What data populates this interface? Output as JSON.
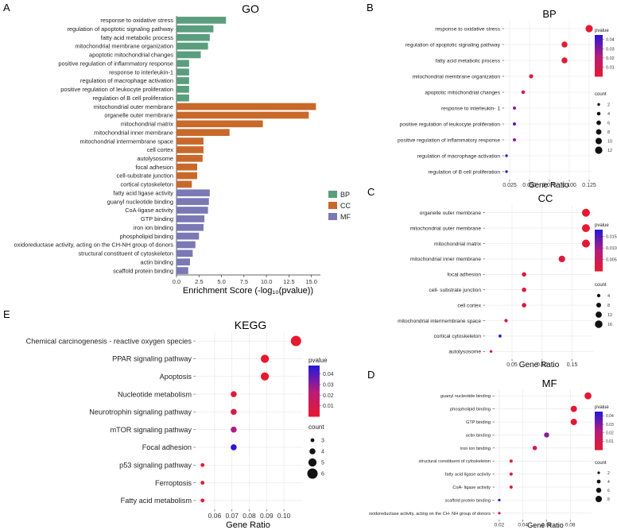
{
  "figure": {
    "panel_letters": [
      "A",
      "B",
      "C",
      "D",
      "E"
    ]
  },
  "colors": {
    "BP": "#5a9e7e",
    "CC": "#c8692a",
    "MF": "#7a79b5",
    "pvalue_low": "#e8192c",
    "pvalue_high": "#2a18d6",
    "grid": "#e6e6e6",
    "panel_bg": "#ffffff"
  },
  "chart_data": [
    {
      "id": "A",
      "type": "bar",
      "orientation": "horizontal",
      "title": "GO",
      "xlabel": "Enrichment Score (-log₁₀(pvalue))",
      "xlim": [
        0,
        16
      ],
      "xticks": [
        "0.0",
        "2.5",
        "5.0",
        "7.5",
        "10.0",
        "12.5",
        "15.0"
      ],
      "xtick_values": [
        0,
        2.5,
        5,
        7.5,
        10,
        12.5,
        15
      ],
      "legend": {
        "position": "right",
        "entries": [
          "BP",
          "CC",
          "MF"
        ]
      },
      "categories": [
        "response to oxidative stress",
        "regulation of apoptotic signaling pathway",
        "fatty acid metabolic process",
        "mitochondrial membrane organization",
        "apoptotic mitochondrial changes",
        "positive regulation of inflammatory response",
        "response to interleukin-1",
        "regulation of macrophage activation",
        "positive regulation of leukocyte proliferation",
        "regulation of B cell proliferation",
        "mitochondrial outer membrane",
        "organelle outer membrane",
        "mitochondrial matrix",
        "mitochondrial inner membrane",
        "mitochondrial intermembrane space",
        "cell cortex",
        "autolysosome",
        "focal adhesion",
        "cell-substrate junction",
        "cortical cytoskeleton",
        "fatty acid ligase activity",
        "guanyl nucleotide binding",
        "CoA-ligase activity",
        "GTP binding",
        "iron ion binding",
        "phospholipid binding",
        "oxidoreductase activity, acting on the CH-NH group of donors",
        "structural constituent of cytoskeleton",
        "actin binding",
        "scaffold protein binding"
      ],
      "groups": [
        "BP",
        "BP",
        "BP",
        "BP",
        "BP",
        "BP",
        "BP",
        "BP",
        "BP",
        "BP",
        "CC",
        "CC",
        "CC",
        "CC",
        "CC",
        "CC",
        "CC",
        "CC",
        "CC",
        "CC",
        "MF",
        "MF",
        "MF",
        "MF",
        "MF",
        "MF",
        "MF",
        "MF",
        "MF",
        "MF"
      ],
      "values": [
        5.5,
        4.1,
        3.7,
        3.5,
        2.7,
        1.4,
        1.4,
        1.4,
        1.4,
        1.4,
        15.5,
        14.7,
        9.6,
        5.9,
        3.0,
        3.0,
        2.9,
        2.3,
        2.3,
        1.7,
        3.7,
        3.6,
        3.5,
        3.1,
        3.0,
        2.5,
        2.1,
        1.8,
        1.5,
        1.3
      ]
    },
    {
      "id": "B",
      "type": "scatter",
      "title": "BP",
      "xlabel": "Gene Ratio",
      "xlim": [
        0.018,
        0.128
      ],
      "xticks": [
        "0.025",
        "0.050",
        "0.075",
        "0.100",
        "0.125"
      ],
      "xtick_values": [
        0.025,
        0.05,
        0.075,
        0.1,
        0.125
      ],
      "categories": [
        "response to oxidative stress",
        "regulation of apoptotic signaling pathway",
        "fatty acid metabolic process",
        "mitochondrial membrane organization",
        "apoptotic mitochondrial changes",
        "response to interleukin- 1",
        "positive regulation of leukocyte proliferation",
        "positive regulation of inflammatory response",
        "regulation of macrophage activation",
        "regulation of B cell proliferation"
      ],
      "x": [
        0.125,
        0.094,
        0.094,
        0.052,
        0.042,
        0.031,
        0.031,
        0.031,
        0.021,
        0.021
      ],
      "counts": [
        12,
        9,
        9,
        5,
        4,
        3,
        3,
        3,
        2,
        2
      ],
      "pvalues": [
        0.001,
        0.002,
        0.002,
        0.004,
        0.008,
        0.03,
        0.038,
        0.03,
        0.04,
        0.042
      ],
      "pvalue_legend": {
        "title": "pvalue",
        "min": 0.0,
        "max": 0.045,
        "ticks": [
          "0.04",
          "0.03",
          "0.02",
          "0.01"
        ],
        "tick_values": [
          0.04,
          0.03,
          0.02,
          0.01
        ]
      },
      "count_legend": {
        "title": "count",
        "ticks": [
          "2",
          "4",
          "6",
          "8",
          "10",
          "12"
        ],
        "tick_values": [
          2,
          4,
          6,
          8,
          10,
          12
        ],
        "min": 2,
        "max": 12
      }
    },
    {
      "id": "C",
      "type": "scatter",
      "title": "CC",
      "xlabel": "Gene Ratio",
      "xlim": [
        0.005,
        0.185
      ],
      "xticks": [
        "0.05",
        "0.10",
        "0.15"
      ],
      "xtick_values": [
        0.05,
        0.1,
        0.15
      ],
      "categories": [
        "organelle outer membrane",
        "mitochondrial outer membrane",
        "mitochondrial matrix",
        "mitochondrial inner membrane",
        "focal adhesion",
        "cell- substrate junction",
        "cell cortex",
        "mitochondrial intermembrane space",
        "cortical cytoskeleton",
        "autolysosome"
      ],
      "x": [
        0.173,
        0.173,
        0.173,
        0.133,
        0.07,
        0.07,
        0.07,
        0.04,
        0.03,
        0.015
      ],
      "counts": [
        17,
        17,
        17,
        13,
        7,
        7,
        7,
        4,
        3,
        2
      ],
      "pvalues": [
        0.0005,
        0.0005,
        0.001,
        0.002,
        0.003,
        0.003,
        0.003,
        0.004,
        0.018,
        0.003
      ],
      "pvalue_legend": {
        "title": "pvalue",
        "min": 0.0,
        "max": 0.018,
        "ticks": [
          "0.015",
          "0.010",
          "0.005"
        ],
        "tick_values": [
          0.015,
          0.01,
          0.005
        ]
      },
      "count_legend": {
        "title": "count",
        "ticks": [
          "4",
          "8",
          "12",
          "16"
        ],
        "tick_values": [
          4,
          8,
          12,
          16
        ],
        "min": 2,
        "max": 17
      }
    },
    {
      "id": "D",
      "type": "scatter",
      "title": "MF",
      "xlabel": "Gene Ratio",
      "xlim": [
        0.016,
        0.098
      ],
      "xticks": [
        "0.02",
        "0.04",
        "0.06",
        "0.08"
      ],
      "xtick_values": [
        0.02,
        0.04,
        0.06,
        0.08
      ],
      "categories": [
        "guanyl nucleotide binding",
        "phospholipid binding",
        "GTP binding",
        "actin binding",
        "iron ion binding",
        "structural constituent of cytoskeleton",
        "fatty acid ligase activity",
        "CoA- ligase activity",
        "scaffold protein binding",
        "oxidoreductase activity, acting on the CH- NH group of donors"
      ],
      "x": [
        0.095,
        0.083,
        0.083,
        0.06,
        0.05,
        0.03,
        0.03,
        0.03,
        0.02,
        0.02
      ],
      "counts": [
        9,
        8,
        8,
        6,
        5,
        3,
        3,
        3,
        2,
        2
      ],
      "pvalues": [
        0.002,
        0.003,
        0.003,
        0.03,
        0.006,
        0.004,
        0.004,
        0.004,
        0.045,
        0.008
      ],
      "pvalue_legend": {
        "title": "pvalue",
        "min": 0.0,
        "max": 0.045,
        "ticks": [
          "0.04",
          "0.03",
          "0.02",
          "0.01"
        ],
        "tick_values": [
          0.04,
          0.03,
          0.02,
          0.01
        ]
      },
      "count_legend": {
        "title": "count",
        "ticks": [
          "2",
          "4",
          "6",
          "8"
        ],
        "tick_values": [
          2,
          4,
          6,
          8
        ],
        "min": 2,
        "max": 9
      }
    },
    {
      "id": "E",
      "type": "scatter",
      "title": "KEGG",
      "xlabel": "Gene Ratio",
      "xlim": [
        0.049,
        0.111
      ],
      "xticks": [
        "0.06",
        "0.07",
        "0.08",
        "0.09",
        "0.10"
      ],
      "xtick_values": [
        0.06,
        0.07,
        0.08,
        0.09,
        0.1
      ],
      "categories": [
        "Chemical carcinogenesis -  reactive oxygen species",
        "PPAR signaling pathway",
        "Apoptosis",
        "Nucleotide metabolism",
        "Neurotrophin signaling pathway",
        "mTOR signaling pathway",
        "Focal adhesion",
        "p53 signaling pathway",
        "Ferroptosis",
        "Fatty acid metabolism"
      ],
      "x": [
        0.107,
        0.089,
        0.089,
        0.071,
        0.071,
        0.071,
        0.071,
        0.053,
        0.053,
        0.053
      ],
      "counts": [
        6,
        5,
        5,
        4,
        4,
        4,
        4,
        3,
        3,
        3
      ],
      "pvalues": [
        0.001,
        0.001,
        0.001,
        0.005,
        0.008,
        0.025,
        0.048,
        0.003,
        0.003,
        0.004
      ],
      "pvalue_legend": {
        "title": "pvalue",
        "min": 0.0,
        "max": 0.048,
        "ticks": [
          "0.04",
          "0.03",
          "0.02",
          "0.01"
        ],
        "tick_values": [
          0.04,
          0.03,
          0.02,
          0.01
        ]
      },
      "count_legend": {
        "title": "count",
        "ticks": [
          "3",
          "4",
          "5",
          "6"
        ],
        "tick_values": [
          3,
          4,
          5,
          6
        ],
        "min": 3,
        "max": 6
      }
    }
  ]
}
